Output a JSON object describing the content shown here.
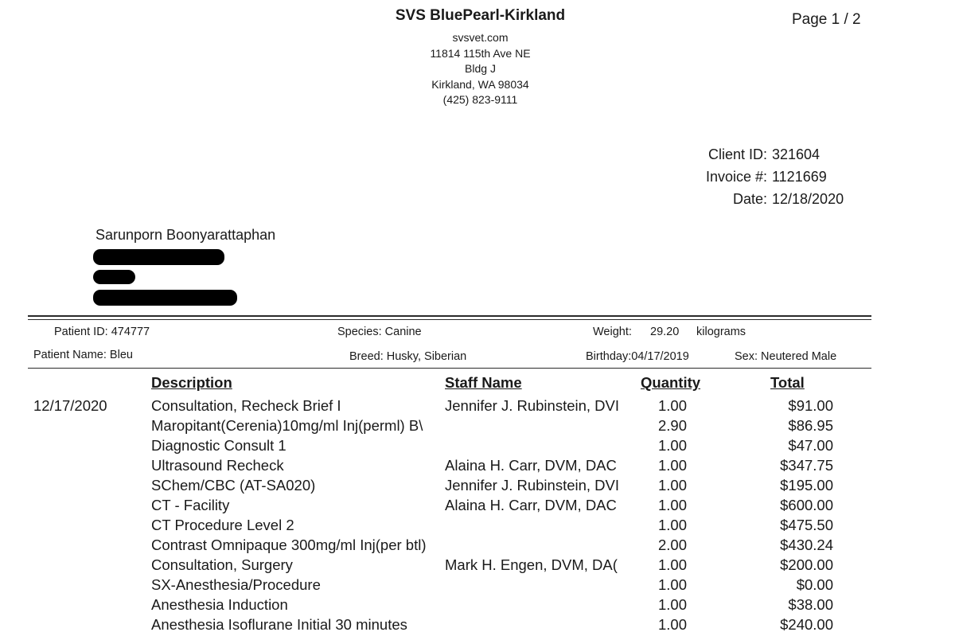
{
  "clinic": {
    "name": "SVS BluePearl-Kirkland",
    "website": "svsvet.com",
    "address1": "11814 115th Ave NE",
    "address2": "Bldg J",
    "city_state_zip": "Kirkland, WA 98034",
    "phone": "(425) 823-9111"
  },
  "page": "Page 1 / 2",
  "invoice": {
    "client_id_label": "Client ID:",
    "client_id": "321604",
    "invoice_label": "Invoice #:",
    "invoice_number": "1121669",
    "date_label": "Date:",
    "date": "12/18/2020"
  },
  "client": {
    "name": "Sarunporn Boonyarattaphan"
  },
  "patient": {
    "id_label": "Patient ID:",
    "id": "474777",
    "name_label": "Patient Name:",
    "name": "Bleu",
    "species_label": "Species:",
    "species": "Canine",
    "breed_label": "Breed:",
    "breed": "Husky, Siberian",
    "weight_label": "Weight:",
    "weight": "29.20",
    "weight_unit": "kilograms",
    "birthday_label": "Birthday:",
    "birthday": "04/17/2019",
    "sex_label": "Sex:",
    "sex": "Neutered Male"
  },
  "table": {
    "headers": {
      "description": "Description",
      "staff": "Staff Name",
      "quantity": "Quantity",
      "total": "Total"
    },
    "rows": [
      {
        "date": "12/17/2020",
        "description": "Consultation, Recheck Brief I",
        "staff": "Jennifer J. Rubinstein, DVI",
        "quantity": "1.00",
        "total": "$91.00"
      },
      {
        "date": "",
        "description": "Maropitant(Cerenia)10mg/ml Inj(perml) B\\",
        "staff": "",
        "quantity": "2.90",
        "total": "$86.95"
      },
      {
        "date": "",
        "description": "Diagnostic Consult 1",
        "staff": "",
        "quantity": "1.00",
        "total": "$47.00"
      },
      {
        "date": "",
        "description": "Ultrasound Recheck",
        "staff": "Alaina H. Carr, DVM, DAC",
        "quantity": "1.00",
        "total": "$347.75"
      },
      {
        "date": "",
        "description": "SChem/CBC (AT-SA020)",
        "staff": "Jennifer J. Rubinstein, DVI",
        "quantity": "1.00",
        "total": "$195.00"
      },
      {
        "date": "",
        "description": "CT - Facility",
        "staff": "Alaina H. Carr, DVM, DAC",
        "quantity": "1.00",
        "total": "$600.00"
      },
      {
        "date": "",
        "description": "CT Procedure Level 2",
        "staff": "",
        "quantity": "1.00",
        "total": "$475.50"
      },
      {
        "date": "",
        "description": "Contrast Omnipaque 300mg/ml Inj(per btl)",
        "staff": "",
        "quantity": "2.00",
        "total": "$430.24"
      },
      {
        "date": "",
        "description": "Consultation, Surgery",
        "staff": "Mark H. Engen, DVM, DA(",
        "quantity": "1.00",
        "total": "$200.00"
      },
      {
        "date": "",
        "description": "SX-Anesthesia/Procedure",
        "staff": "",
        "quantity": "1.00",
        "total": "$0.00"
      },
      {
        "date": "",
        "description": "Anesthesia Induction",
        "staff": "",
        "quantity": "1.00",
        "total": "$38.00"
      },
      {
        "date": "",
        "description": "Anesthesia Isoflurane Initial 30 minutes",
        "staff": "",
        "quantity": "1.00",
        "total": "$240.00"
      }
    ]
  }
}
